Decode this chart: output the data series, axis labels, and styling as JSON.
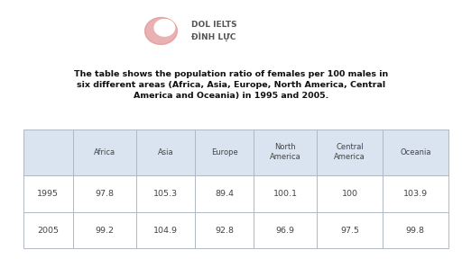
{
  "title": "The table shows the population ratio of females per 100 males in\nsix different areas (Africa, Asia, Europe, North America, Central\nAmerica and Oceania) in 1995 and 2005.",
  "columns": [
    "",
    "Africa",
    "Asia",
    "Europe",
    "North\nAmerica",
    "Central\nAmerica",
    "Oceania"
  ],
  "rows": [
    [
      "1995",
      "97.8",
      "105.3",
      "89.4",
      "100.1",
      "100",
      "103.9"
    ],
    [
      "2005",
      "99.2",
      "104.9",
      "92.8",
      "96.9",
      "97.5",
      "99.8"
    ]
  ],
  "header_bg": "#d9e4f0",
  "row_bg": "#ffffff",
  "alt_row_bg": "#f5f5f5",
  "border_color": "#b0b8c4",
  "text_color": "#444444",
  "title_color": "#111111",
  "background_color": "#ffffff",
  "logo_color": "#e08080",
  "logo_text_line1": "DOL IELTS",
  "logo_text_line2": "ĐÌNH LỰC",
  "logo_text_color": "#666666"
}
